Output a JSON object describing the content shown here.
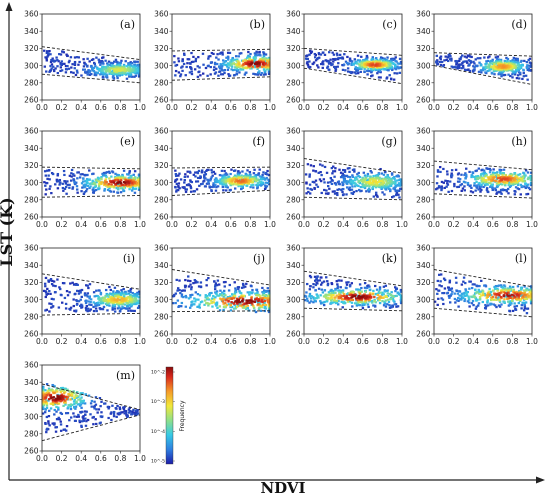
{
  "chart_data": {
    "type": "scatter",
    "xlabel": "NDVI",
    "ylabel": "LST (K)",
    "xlim": [
      0.0,
      1.0
    ],
    "ylim": [
      260,
      360
    ],
    "xticks": [
      0.0,
      0.2,
      0.4,
      0.6,
      0.8,
      1.0
    ],
    "yticks": [
      260,
      280,
      300,
      320,
      340,
      360
    ],
    "colorbar": {
      "label": "Frequency",
      "ticks": [
        "10^-5",
        "10^-4",
        "10^-3",
        "10^-2"
      ],
      "colors": [
        "#1c1ca8",
        "#2f7fe0",
        "#36c9e6",
        "#8fe08a",
        "#f2e83a",
        "#f59a2a",
        "#d8281c",
        "#8a0c0c"
      ]
    },
    "panels": [
      {
        "label": "(a)",
        "dry_edge": [
          [
            0.0,
            322
          ],
          [
            1.0,
            307
          ]
        ],
        "wet_edge": [
          [
            0.0,
            290
          ],
          [
            1.0,
            280
          ]
        ],
        "hotspot": [
          0.78,
          295
        ],
        "spread": [
          0.28,
          7
        ],
        "intensity": 0.55
      },
      {
        "label": "(b)",
        "dry_edge": [
          [
            0.0,
            317
          ],
          [
            1.0,
            319
          ]
        ],
        "wet_edge": [
          [
            0.0,
            283
          ],
          [
            1.0,
            287
          ]
        ],
        "hotspot": [
          0.85,
          302
        ],
        "spread": [
          0.3,
          8
        ],
        "intensity": 1.0
      },
      {
        "label": "(c)",
        "dry_edge": [
          [
            0.0,
            320
          ],
          [
            1.0,
            312
          ]
        ],
        "wet_edge": [
          [
            0.0,
            297
          ],
          [
            1.0,
            279
          ]
        ],
        "hotspot": [
          0.72,
          301
        ],
        "spread": [
          0.22,
          6
        ],
        "intensity": 0.85
      },
      {
        "label": "(d)",
        "dry_edge": [
          [
            0.0,
            315
          ],
          [
            1.0,
            311
          ]
        ],
        "wet_edge": [
          [
            0.0,
            300
          ],
          [
            1.0,
            278
          ]
        ],
        "hotspot": [
          0.7,
          299
        ],
        "spread": [
          0.22,
          7
        ],
        "intensity": 0.75
      },
      {
        "label": "(e)",
        "dry_edge": [
          [
            0.0,
            318
          ],
          [
            1.0,
            316
          ]
        ],
        "wet_edge": [
          [
            0.0,
            283
          ],
          [
            1.0,
            285
          ]
        ],
        "hotspot": [
          0.8,
          300
        ],
        "spread": [
          0.35,
          8
        ],
        "intensity": 1.0
      },
      {
        "label": "(f)",
        "dry_edge": [
          [
            0.0,
            317
          ],
          [
            1.0,
            318
          ]
        ],
        "wet_edge": [
          [
            0.0,
            285
          ],
          [
            1.0,
            291
          ]
        ],
        "hotspot": [
          0.7,
          302
        ],
        "spread": [
          0.25,
          7
        ],
        "intensity": 0.8
      },
      {
        "label": "(g)",
        "dry_edge": [
          [
            0.0,
            328
          ],
          [
            1.0,
            311
          ]
        ],
        "wet_edge": [
          [
            0.0,
            283
          ],
          [
            1.0,
            280
          ]
        ],
        "hotspot": [
          0.72,
          301
        ],
        "spread": [
          0.3,
          9
        ],
        "intensity": 0.6
      },
      {
        "label": "(h)",
        "dry_edge": [
          [
            0.0,
            325
          ],
          [
            1.0,
            315
          ]
        ],
        "wet_edge": [
          [
            0.0,
            287
          ],
          [
            1.0,
            282
          ]
        ],
        "hotspot": [
          0.7,
          304
        ],
        "spread": [
          0.35,
          8
        ],
        "intensity": 0.85
      },
      {
        "label": "(i)",
        "dry_edge": [
          [
            0.0,
            330
          ],
          [
            1.0,
            312
          ]
        ],
        "wet_edge": [
          [
            0.0,
            282
          ],
          [
            1.0,
            284
          ]
        ],
        "hotspot": [
          0.78,
          300
        ],
        "spread": [
          0.28,
          8
        ],
        "intensity": 0.7
      },
      {
        "label": "(j)",
        "dry_edge": [
          [
            0.0,
            335
          ],
          [
            1.0,
            317
          ]
        ],
        "wet_edge": [
          [
            0.0,
            286
          ],
          [
            1.0,
            287
          ]
        ],
        "hotspot": [
          0.75,
          298
        ],
        "spread": [
          0.55,
          10
        ],
        "intensity": 1.0
      },
      {
        "label": "(k)",
        "dry_edge": [
          [
            0.0,
            333
          ],
          [
            1.0,
            316
          ]
        ],
        "wet_edge": [
          [
            0.0,
            290
          ],
          [
            1.0,
            287
          ]
        ],
        "hotspot": [
          0.55,
          303
        ],
        "spread": [
          0.45,
          8
        ],
        "intensity": 1.0
      },
      {
        "label": "(l)",
        "dry_edge": [
          [
            0.0,
            335
          ],
          [
            1.0,
            315
          ]
        ],
        "wet_edge": [
          [
            0.0,
            290
          ],
          [
            1.0,
            280
          ]
        ],
        "hotspot": [
          0.75,
          305
        ],
        "spread": [
          0.45,
          9
        ],
        "intensity": 0.95
      },
      {
        "label": "(m)",
        "dry_edge": [
          [
            0.0,
            338
          ],
          [
            1.0,
            308
          ]
        ],
        "wet_edge": [
          [
            0.0,
            272
          ],
          [
            1.0,
            302
          ]
        ],
        "hotspot": [
          0.14,
          322
        ],
        "spread": [
          0.3,
          12
        ],
        "intensity": 1.0
      }
    ]
  }
}
